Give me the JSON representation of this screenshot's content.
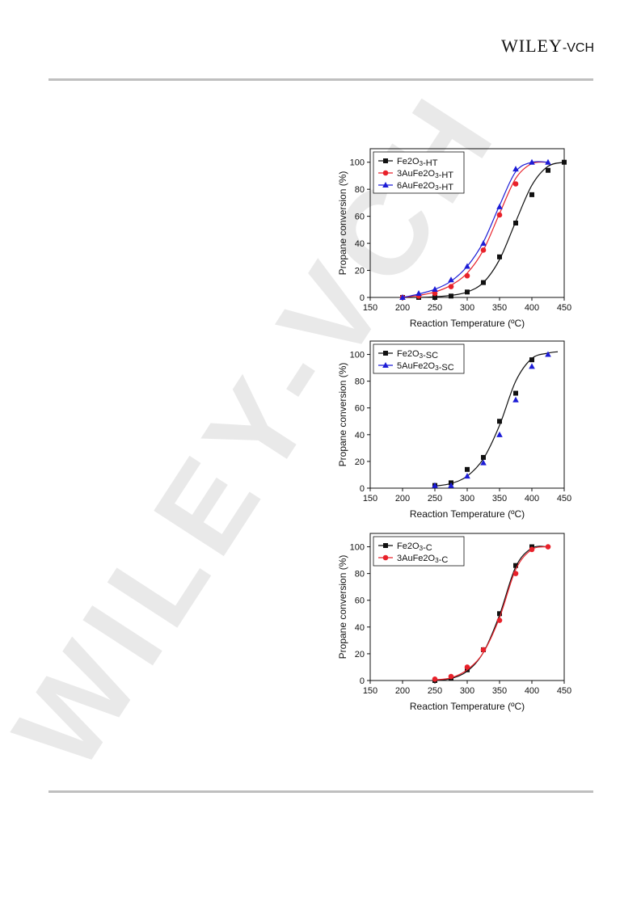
{
  "header": {
    "logo_main": "WILEY",
    "logo_suffix": "-VCH"
  },
  "watermark": {
    "text": "WILEY-VCH"
  },
  "colors": {
    "black": "#111111",
    "red": "#e8212a",
    "blue": "#1c1cd6",
    "rule": "#bfbfbf",
    "watermark": "#d9d9d9"
  },
  "chart_data": [
    {
      "type": "scatter",
      "xlabel": "Reaction Temperature (ºC)",
      "ylabel": "Propane conversion (%)",
      "xlim": [
        150,
        450
      ],
      "ylim": [
        0,
        110
      ],
      "xticks": [
        150,
        200,
        250,
        300,
        350,
        400,
        450
      ],
      "yticks": [
        0,
        20,
        40,
        60,
        80,
        100
      ],
      "legend_position": "top-left",
      "series": [
        {
          "name": "Fe2O3-HT",
          "marker": "square",
          "color": "#111111",
          "x": [
            200,
            225,
            250,
            275,
            300,
            325,
            350,
            375,
            400,
            425,
            450
          ],
          "y": [
            0,
            0,
            0,
            1,
            4,
            11,
            30,
            55,
            76,
            94,
            100
          ],
          "fit_x": [
            200,
            225,
            250,
            275,
            300,
            325,
            350,
            375,
            400,
            425,
            450
          ],
          "fit_y": [
            0,
            0,
            0.5,
            1.5,
            4,
            11,
            28,
            56,
            83,
            97,
            100
          ]
        },
        {
          "name": "3AuFe2O3-HT",
          "marker": "circle",
          "color": "#e8212a",
          "x": [
            200,
            225,
            250,
            275,
            300,
            325,
            350,
            375
          ],
          "y": [
            0,
            1,
            3,
            8,
            16,
            35,
            61,
            84
          ],
          "fit_x": [
            200,
            225,
            250,
            275,
            300,
            325,
            350,
            375,
            400,
            425
          ],
          "fit_y": [
            0,
            1.5,
            4,
            9,
            18,
            35,
            62,
            88,
            99,
            100
          ]
        },
        {
          "name": "6AuFe2O3-HT",
          "marker": "triangle",
          "color": "#1c1cd6",
          "x": [
            200,
            225,
            250,
            275,
            300,
            325,
            350,
            375,
            400,
            425
          ],
          "y": [
            0,
            3,
            6,
            13,
            23,
            40,
            67,
            95,
            100,
            100
          ],
          "fit_x": [
            200,
            225,
            250,
            275,
            300,
            325,
            350,
            375,
            400,
            425
          ],
          "fit_y": [
            0,
            2.5,
            6,
            12,
            23,
            41,
            68,
            93,
            100,
            100
          ]
        }
      ]
    },
    {
      "type": "scatter",
      "xlabel": "Reaction Temperature (ºC)",
      "ylabel": "Propane conversion (%)",
      "xlim": [
        150,
        450
      ],
      "ylim": [
        0,
        110
      ],
      "xticks": [
        150,
        200,
        250,
        300,
        350,
        400,
        450
      ],
      "yticks": [
        0,
        20,
        40,
        60,
        80,
        100
      ],
      "legend_position": "top-left",
      "series": [
        {
          "name": "Fe2O3-SC",
          "marker": "square",
          "color": "#111111",
          "x": [
            250,
            275,
            300,
            325,
            350,
            375,
            400
          ],
          "y": [
            2,
            4,
            14,
            23,
            50,
            71,
            96
          ],
          "fit_x": [
            250,
            275,
            300,
            325,
            350,
            375,
            400,
            425,
            440
          ],
          "fit_y": [
            1.5,
            3.5,
            9,
            22,
            47,
            80,
            97,
            101,
            102
          ]
        },
        {
          "name": "5AuFe2O3-SC",
          "marker": "triangle",
          "color": "#1c1cd6",
          "x": [
            250,
            275,
            300,
            325,
            350,
            375,
            400,
            425
          ],
          "y": [
            2,
            2,
            9,
            19,
            40,
            66,
            91,
            100
          ],
          "fit_x": [],
          "fit_y": []
        }
      ]
    },
    {
      "type": "scatter",
      "xlabel": "Reaction Temperature (ºC)",
      "ylabel": "Propane conversion (%)",
      "xlim": [
        150,
        450
      ],
      "ylim": [
        0,
        110
      ],
      "xticks": [
        150,
        200,
        250,
        300,
        350,
        400,
        450
      ],
      "yticks": [
        0,
        20,
        40,
        60,
        80,
        100
      ],
      "legend_position": "top-left",
      "series": [
        {
          "name": "Fe2O3-C",
          "marker": "square",
          "color": "#111111",
          "x": [
            250,
            275,
            300,
            325,
            350,
            375,
            400
          ],
          "y": [
            0,
            2,
            8,
            23,
            50,
            86,
            100
          ],
          "fit_x": [
            250,
            275,
            300,
            325,
            350,
            375,
            400,
            425
          ],
          "fit_y": [
            0,
            1.5,
            7,
            21,
            49,
            85,
            99,
            100
          ]
        },
        {
          "name": "3AuFe2O3-C",
          "marker": "circle",
          "color": "#e8212a",
          "x": [
            250,
            275,
            300,
            325,
            350,
            375,
            400,
            425
          ],
          "y": [
            1,
            3,
            10,
            23,
            45,
            80,
            98,
            100
          ],
          "fit_x": [
            250,
            275,
            300,
            325,
            350,
            375,
            400,
            425
          ],
          "fit_y": [
            0.5,
            2,
            8,
            21,
            47,
            83,
            98,
            100
          ]
        }
      ]
    }
  ]
}
